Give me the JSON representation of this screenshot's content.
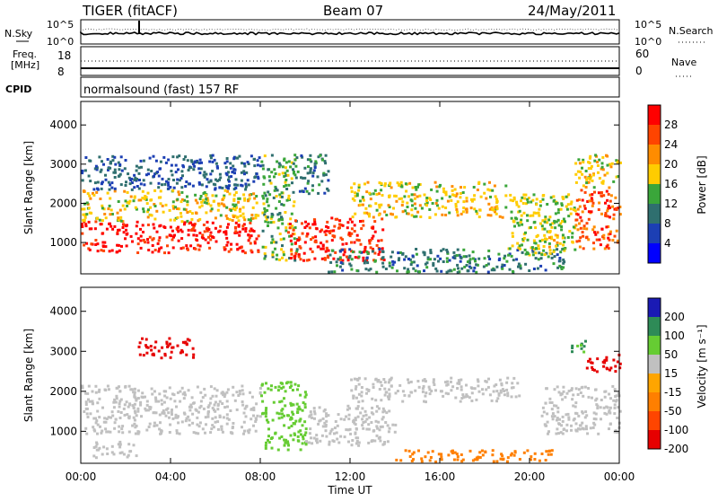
{
  "header": {
    "radar": "TIGER (fitACF)",
    "beam": "Beam 07",
    "date": "24/May/2011"
  },
  "noise_panel": {
    "left_label": "N.Sky",
    "right_label": "N.Search",
    "left_ticks": [
      "10^5",
      "10^0"
    ],
    "right_ticks": [
      "10^5",
      "10^0"
    ]
  },
  "freq_panel": {
    "left_label_1": "Freq.",
    "left_label_2": "[MHz]",
    "right_label": "Nave",
    "left_ticks": [
      "18",
      "8"
    ],
    "right_ticks": [
      "60",
      "0"
    ]
  },
  "cpid_panel": {
    "label": "CPID",
    "text": "normalsound (fast) 157 RF"
  },
  "power_panel": {
    "ylabel": "Slant Range [km]",
    "yticks": [
      "4000",
      "3000",
      "2000",
      "1000"
    ],
    "colorbar_label": "Power [dB]",
    "colorbar_ticks": [
      "28",
      "24",
      "20",
      "16",
      "12",
      "8",
      "4"
    ],
    "colorbar_colors": [
      "#ff0000",
      "#ff4400",
      "#ff8c00",
      "#ffcc00",
      "#3aa63a",
      "#2f6f6f",
      "#1c3fb4",
      "#0000ff"
    ]
  },
  "velocity_panel": {
    "ylabel": "Slant Range [km]",
    "yticks": [
      "4000",
      "3000",
      "2000",
      "1000"
    ],
    "colorbar_label": "Velocity [m s⁻¹]",
    "colorbar_ticks": [
      "200",
      "100",
      "50",
      "15",
      "-15",
      "-50",
      "-100",
      "-200"
    ],
    "colorbar_colors": [
      "#1a1ab4",
      "#2e8b57",
      "#66cc33",
      "#c0c0c0",
      "#ffa500",
      "#ff7f00",
      "#ff4500",
      "#e60000"
    ]
  },
  "time_axis": {
    "ticks": [
      "00:00",
      "04:00",
      "08:00",
      "12:00",
      "16:00",
      "20:00",
      "00:00"
    ],
    "label": "Time UT"
  },
  "chart_data": {
    "type": "heatmap",
    "x_range_hours": [
      0,
      24
    ],
    "y_range_km": [
      200,
      4600
    ],
    "power_regions": [
      {
        "t0": 0.0,
        "t1": 7.9,
        "r0": 700,
        "r1": 1500,
        "power": 28
      },
      {
        "t0": 0.0,
        "t1": 7.9,
        "r0": 1500,
        "r1": 2300,
        "power": 16
      },
      {
        "t0": 0.0,
        "t1": 8.0,
        "r0": 2300,
        "r1": 3200,
        "power": 6
      },
      {
        "t0": 8.0,
        "t1": 9.6,
        "r0": 500,
        "r1": 3200,
        "power": 12
      },
      {
        "t0": 9.2,
        "t1": 13.5,
        "r0": 500,
        "r1": 1600,
        "power": 26
      },
      {
        "t0": 9.5,
        "t1": 11.0,
        "r0": 2200,
        "r1": 3200,
        "power": 8
      },
      {
        "t0": 12.0,
        "t1": 18.9,
        "r0": 1600,
        "r1": 2500,
        "power": 16
      },
      {
        "t0": 11.0,
        "t1": 21.5,
        "r0": 200,
        "r1": 800,
        "power": 8
      },
      {
        "t0": 19.0,
        "t1": 22.0,
        "r0": 600,
        "r1": 2200,
        "power": 14
      },
      {
        "t0": 20.6,
        "t1": 21.5,
        "r0": 700,
        "r1": 1300,
        "power": 16
      },
      {
        "t0": 22.0,
        "t1": 24.0,
        "r0": 800,
        "r1": 2300,
        "power": 24
      },
      {
        "t0": 22.0,
        "t1": 24.0,
        "r0": 2300,
        "r1": 3200,
        "power": 16
      }
    ],
    "velocity_regions": [
      {
        "t0": 0.0,
        "t1": 8.0,
        "r0": 900,
        "r1": 2100,
        "velocity": 0
      },
      {
        "t0": 0.5,
        "t1": 2.5,
        "r0": 300,
        "r1": 700,
        "velocity": 0
      },
      {
        "t0": 8.0,
        "t1": 10.0,
        "r0": 500,
        "r1": 2200,
        "velocity": 60
      },
      {
        "t0": 2.5,
        "t1": 5.0,
        "r0": 2800,
        "r1": 3300,
        "velocity": -200
      },
      {
        "t0": 10.0,
        "t1": 14.0,
        "r0": 600,
        "r1": 1600,
        "velocity": 0
      },
      {
        "t0": 12.0,
        "t1": 19.5,
        "r0": 1700,
        "r1": 2300,
        "velocity": 0
      },
      {
        "t0": 14.0,
        "t1": 21.0,
        "r0": 200,
        "r1": 500,
        "velocity": -60
      },
      {
        "t0": 20.5,
        "t1": 24.0,
        "r0": 900,
        "r1": 2100,
        "velocity": 0
      },
      {
        "t0": 21.8,
        "t1": 22.5,
        "r0": 2900,
        "r1": 3300,
        "velocity": 80
      },
      {
        "t0": 22.5,
        "t1": 24.0,
        "r0": 2400,
        "r1": 2900,
        "velocity": -200
      }
    ]
  }
}
